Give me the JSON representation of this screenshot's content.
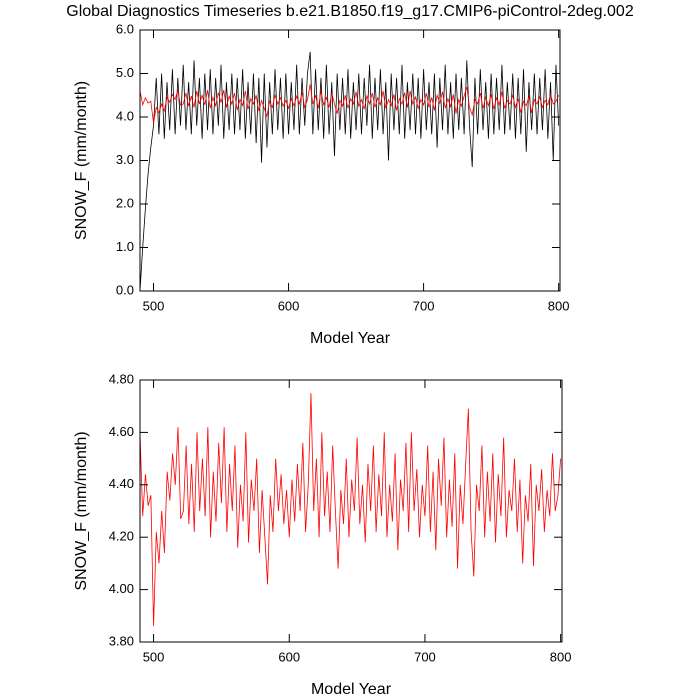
{
  "chart_data": [
    {
      "type": "line",
      "title": "Global Diagnostics Timeseries b.e21.B1850.f19_g17.CMIP6-piControl-2deg.002",
      "x_label": "Model Year",
      "y_label": "SNOW_F (mm/month)",
      "x": [
        490,
        492,
        494,
        496,
        498,
        500,
        502,
        504,
        506,
        508,
        510,
        512,
        514,
        516,
        518,
        520,
        522,
        524,
        526,
        528,
        530,
        532,
        534,
        536,
        538,
        540,
        542,
        544,
        546,
        548,
        550,
        552,
        554,
        556,
        558,
        560,
        562,
        564,
        566,
        568,
        570,
        572,
        574,
        576,
        578,
        580,
        582,
        584,
        586,
        588,
        590,
        592,
        594,
        596,
        598,
        600,
        602,
        604,
        606,
        608,
        610,
        612,
        614,
        616,
        618,
        620,
        622,
        624,
        626,
        628,
        630,
        632,
        634,
        636,
        638,
        640,
        642,
        644,
        646,
        648,
        650,
        652,
        654,
        656,
        658,
        660,
        662,
        664,
        666,
        668,
        670,
        672,
        674,
        676,
        678,
        680,
        682,
        684,
        686,
        688,
        690,
        692,
        694,
        696,
        698,
        700,
        702,
        704,
        706,
        708,
        710,
        712,
        714,
        716,
        718,
        720,
        722,
        724,
        726,
        728,
        730,
        732,
        734,
        736,
        738,
        740,
        742,
        744,
        746,
        748,
        750,
        752,
        754,
        756,
        758,
        760,
        762,
        764,
        766,
        768,
        770,
        772,
        774,
        776,
        778,
        780,
        782,
        784,
        786,
        788,
        790,
        792,
        794,
        796,
        798,
        800
      ],
      "series": [
        {
          "color": "#000000",
          "values": [
            0.0,
            1.0,
            1.9,
            2.7,
            3.3,
            3.8,
            4.9,
            3.6,
            5.0,
            3.5,
            4.8,
            3.7,
            5.1,
            3.6,
            4.9,
            3.8,
            5.2,
            3.7,
            4.8,
            3.6,
            5.3,
            3.8,
            4.9,
            3.5,
            5.0,
            3.7,
            5.1,
            3.6,
            4.9,
            3.8,
            5.2,
            3.5,
            4.8,
            3.7,
            5.0,
            3.6,
            4.9,
            3.7,
            5.1,
            3.5,
            4.8,
            3.6,
            5.0,
            3.4,
            4.9,
            2.95,
            5.0,
            3.3,
            4.8,
            3.6,
            5.1,
            3.7,
            4.9,
            3.5,
            5.0,
            3.6,
            4.8,
            3.7,
            5.2,
            3.6,
            4.9,
            3.8,
            5.0,
            5.5,
            3.6,
            5.1,
            3.7,
            4.9,
            3.5,
            5.2,
            3.6,
            4.8,
            3.1,
            5.0,
            3.7,
            4.9,
            3.6,
            5.1,
            3.5,
            4.8,
            3.7,
            5.0,
            3.6,
            4.9,
            3.8,
            5.2,
            3.5,
            4.9,
            3.7,
            5.1,
            3.6,
            4.8,
            3.0,
            5.0,
            3.7,
            4.9,
            3.6,
            5.2,
            3.5,
            4.8,
            3.7,
            5.0,
            3.6,
            4.9,
            3.5,
            5.1,
            3.7,
            4.8,
            3.6,
            5.0,
            3.3,
            4.9,
            3.7,
            5.2,
            3.6,
            4.8,
            3.5,
            5.0,
            3.7,
            4.9,
            3.6,
            5.3,
            3.8,
            2.85,
            4.9,
            3.6,
            5.1,
            3.7,
            4.8,
            3.5,
            5.0,
            3.6,
            4.9,
            3.7,
            5.2,
            3.6,
            4.8,
            3.7,
            5.0,
            3.5,
            4.9,
            3.6,
            5.1,
            3.2,
            4.8,
            3.7,
            5.0,
            3.6,
            4.9,
            3.7,
            5.1,
            3.5,
            4.8,
            3.0,
            5.2,
            3.8
          ]
        },
        {
          "color": "#ff0000",
          "values": [
            4.6,
            4.28,
            4.44,
            4.32,
            4.36,
            3.86,
            4.22,
            4.1,
            4.3,
            4.14,
            4.45,
            4.34,
            4.52,
            4.4,
            4.62,
            4.27,
            4.3,
            4.55,
            4.25,
            4.48,
            4.22,
            4.6,
            4.3,
            4.5,
            4.28,
            4.62,
            4.2,
            4.45,
            4.26,
            4.56,
            4.33,
            4.62,
            4.22,
            4.48,
            4.3,
            4.55,
            4.16,
            4.4,
            4.26,
            4.6,
            4.18,
            4.42,
            4.3,
            4.5,
            4.14,
            4.38,
            4.2,
            4.02,
            4.36,
            4.22,
            4.5,
            4.3,
            4.44,
            4.25,
            4.38,
            4.2,
            4.42,
            4.26,
            4.48,
            4.3,
            4.56,
            4.22,
            4.4,
            4.75,
            4.3,
            4.5,
            4.2,
            4.6,
            4.28,
            4.45,
            4.22,
            4.55,
            4.3,
            4.08,
            4.38,
            4.25,
            4.5,
            4.2,
            4.42,
            4.3,
            4.58,
            4.25,
            4.4,
            4.18,
            4.48,
            4.3,
            4.55,
            4.22,
            4.44,
            4.28,
            4.6,
            4.2,
            4.4,
            4.26,
            4.52,
            4.15,
            4.42,
            4.3,
            4.56,
            4.22,
            4.6,
            4.3,
            4.46,
            4.2,
            4.4,
            4.28,
            4.55,
            4.22,
            4.45,
            4.15,
            4.5,
            4.32,
            4.58,
            4.2,
            4.42,
            4.24,
            4.52,
            4.08,
            4.4,
            4.25,
            4.48,
            4.69,
            4.22,
            4.05,
            4.4,
            4.3,
            4.55,
            4.2,
            4.45,
            4.26,
            4.52,
            4.18,
            4.44,
            4.28,
            4.58,
            4.2,
            4.38,
            4.3,
            4.5,
            4.22,
            4.42,
            4.1,
            4.36,
            4.26,
            4.48,
            4.09,
            4.4,
            4.3,
            4.46,
            4.22,
            4.38,
            4.28,
            4.52,
            4.3,
            4.36,
            4.5
          ]
        }
      ],
      "xlim": [
        490,
        801
      ],
      "xticks": [
        500,
        600,
        700,
        800
      ],
      "ylim": [
        0,
        6
      ],
      "yticks": [
        {
          "value": 0,
          "label": "0.0"
        },
        {
          "value": 1,
          "label": "1.0"
        },
        {
          "value": 2,
          "label": "2.0"
        },
        {
          "value": 3,
          "label": "3.0"
        },
        {
          "value": 4,
          "label": "4.0"
        },
        {
          "value": 5,
          "label": "5.0"
        },
        {
          "value": 6,
          "label": "6.0"
        }
      ]
    },
    {
      "type": "line",
      "x_label": "Model Year",
      "y_label": "SNOW_F (mm/month)",
      "x": [
        490,
        492,
        494,
        496,
        498,
        500,
        502,
        504,
        506,
        508,
        510,
        512,
        514,
        516,
        518,
        520,
        522,
        524,
        526,
        528,
        530,
        532,
        534,
        536,
        538,
        540,
        542,
        544,
        546,
        548,
        550,
        552,
        554,
        556,
        558,
        560,
        562,
        564,
        566,
        568,
        570,
        572,
        574,
        576,
        578,
        580,
        582,
        584,
        586,
        588,
        590,
        592,
        594,
        596,
        598,
        600,
        602,
        604,
        606,
        608,
        610,
        612,
        614,
        616,
        618,
        620,
        622,
        624,
        626,
        628,
        630,
        632,
        634,
        636,
        638,
        640,
        642,
        644,
        646,
        648,
        650,
        652,
        654,
        656,
        658,
        660,
        662,
        664,
        666,
        668,
        670,
        672,
        674,
        676,
        678,
        680,
        682,
        684,
        686,
        688,
        690,
        692,
        694,
        696,
        698,
        700,
        702,
        704,
        706,
        708,
        710,
        712,
        714,
        716,
        718,
        720,
        722,
        724,
        726,
        728,
        730,
        732,
        734,
        736,
        738,
        740,
        742,
        744,
        746,
        748,
        750,
        752,
        754,
        756,
        758,
        760,
        762,
        764,
        766,
        768,
        770,
        772,
        774,
        776,
        778,
        780,
        782,
        784,
        786,
        788,
        790,
        792,
        794,
        796,
        798,
        800
      ],
      "series": [
        {
          "color": "#ff0000",
          "values": [
            4.6,
            4.28,
            4.44,
            4.32,
            4.36,
            3.86,
            4.22,
            4.1,
            4.3,
            4.14,
            4.45,
            4.34,
            4.52,
            4.4,
            4.62,
            4.27,
            4.3,
            4.55,
            4.25,
            4.48,
            4.22,
            4.6,
            4.3,
            4.5,
            4.28,
            4.62,
            4.2,
            4.45,
            4.26,
            4.56,
            4.33,
            4.62,
            4.22,
            4.48,
            4.3,
            4.55,
            4.16,
            4.4,
            4.26,
            4.6,
            4.18,
            4.42,
            4.3,
            4.5,
            4.14,
            4.38,
            4.2,
            4.02,
            4.36,
            4.22,
            4.5,
            4.3,
            4.44,
            4.25,
            4.38,
            4.2,
            4.42,
            4.26,
            4.48,
            4.3,
            4.56,
            4.22,
            4.4,
            4.75,
            4.3,
            4.5,
            4.2,
            4.6,
            4.28,
            4.45,
            4.22,
            4.55,
            4.3,
            4.08,
            4.38,
            4.25,
            4.5,
            4.2,
            4.42,
            4.3,
            4.58,
            4.25,
            4.4,
            4.18,
            4.48,
            4.3,
            4.55,
            4.22,
            4.44,
            4.28,
            4.6,
            4.2,
            4.4,
            4.26,
            4.52,
            4.15,
            4.42,
            4.3,
            4.56,
            4.22,
            4.6,
            4.3,
            4.46,
            4.2,
            4.4,
            4.28,
            4.55,
            4.22,
            4.45,
            4.15,
            4.5,
            4.32,
            4.58,
            4.2,
            4.42,
            4.24,
            4.52,
            4.08,
            4.4,
            4.25,
            4.48,
            4.69,
            4.22,
            4.05,
            4.4,
            4.3,
            4.55,
            4.2,
            4.45,
            4.26,
            4.52,
            4.18,
            4.44,
            4.28,
            4.58,
            4.2,
            4.38,
            4.3,
            4.5,
            4.22,
            4.42,
            4.1,
            4.36,
            4.26,
            4.48,
            4.09,
            4.4,
            4.3,
            4.46,
            4.22,
            4.38,
            4.28,
            4.52,
            4.3,
            4.36,
            4.5
          ]
        }
      ],
      "xlim": [
        490,
        801
      ],
      "xticks": [
        500,
        600,
        700,
        800
      ],
      "ylim": [
        3.8,
        4.8
      ],
      "yticks": [
        {
          "value": 3.8,
          "label": "3.80"
        },
        {
          "value": 4.0,
          "label": "4.00"
        },
        {
          "value": 4.2,
          "label": "4.20"
        },
        {
          "value": 4.4,
          "label": "4.40"
        },
        {
          "value": 4.6,
          "label": "4.60"
        },
        {
          "value": 4.8,
          "label": "4.80"
        }
      ]
    }
  ]
}
